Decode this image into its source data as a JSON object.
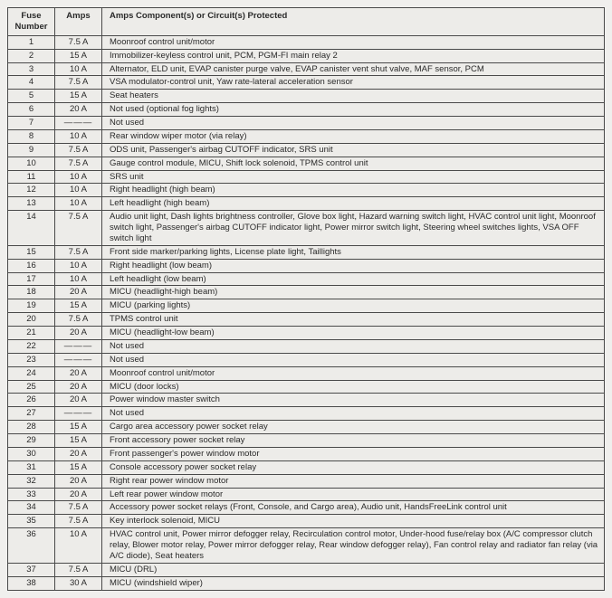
{
  "headers": {
    "fuse": "Fuse\nNumber",
    "amps": "Amps",
    "desc": "Amps Component(s) or Circuit(s) Protected"
  },
  "rows": [
    {
      "n": "1",
      "a": "7.5 A",
      "d": "Moonroof control unit/motor"
    },
    {
      "n": "2",
      "a": "15 A",
      "d": "Immobilizer-keyless control unit, PCM, PGM-FI main relay 2"
    },
    {
      "n": "3",
      "a": "10 A",
      "d": "Alternator, ELD unit, EVAP canister purge valve, EVAP canister vent shut valve, MAF sensor, PCM"
    },
    {
      "n": "4",
      "a": "7.5 A",
      "d": "VSA modulator-control unit, Yaw rate-lateral acceleration sensor"
    },
    {
      "n": "5",
      "a": "15 A",
      "d": "Seat heaters"
    },
    {
      "n": "6",
      "a": "20 A",
      "d": "Not used (optional fog lights)"
    },
    {
      "n": "7",
      "a": "———",
      "d": "Not used"
    },
    {
      "n": "8",
      "a": "10 A",
      "d": "Rear window wiper motor (via relay)"
    },
    {
      "n": "9",
      "a": "7.5 A",
      "d": "ODS unit, Passenger's airbag CUTOFF indicator, SRS unit"
    },
    {
      "n": "10",
      "a": "7.5 A",
      "d": "Gauge control module, MICU, Shift lock solenoid, TPMS control unit"
    },
    {
      "n": "11",
      "a": "10 A",
      "d": "SRS unit"
    },
    {
      "n": "12",
      "a": "10 A",
      "d": "Right headlight (high beam)"
    },
    {
      "n": "13",
      "a": "10 A",
      "d": "Left headlight (high beam)"
    },
    {
      "n": "14",
      "a": "7.5 A",
      "d": "Audio unit light, Dash lights brightness controller, Glove box light, Hazard warning switch light, HVAC control unit light, Moonroof switch light, Passenger's airbag CUTOFF indicator light, Power mirror switch light, Steering wheel switches lights, VSA OFF switch light"
    },
    {
      "n": "15",
      "a": "7.5 A",
      "d": "Front side marker/parking lights, License plate light, Taillights"
    },
    {
      "n": "16",
      "a": "10 A",
      "d": "Right headlight (low beam)"
    },
    {
      "n": "17",
      "a": "10 A",
      "d": "Left headlight (low beam)"
    },
    {
      "n": "18",
      "a": "20 A",
      "d": "MICU (headlight-high beam)"
    },
    {
      "n": "19",
      "a": "15 A",
      "d": "MICU (parking lights)"
    },
    {
      "n": "20",
      "a": "7.5 A",
      "d": "TPMS control unit"
    },
    {
      "n": "21",
      "a": "20 A",
      "d": "MICU (headlight-low beam)"
    },
    {
      "n": "22",
      "a": "———",
      "d": "Not used"
    },
    {
      "n": "23",
      "a": "———",
      "d": "Not used"
    },
    {
      "n": "24",
      "a": "20 A",
      "d": "Moonroof control unit/motor"
    },
    {
      "n": "25",
      "a": "20 A",
      "d": "MICU (door locks)"
    },
    {
      "n": "26",
      "a": "20 A",
      "d": "Power window master switch"
    },
    {
      "n": "27",
      "a": "———",
      "d": "Not used"
    },
    {
      "n": "28",
      "a": "15 A",
      "d": "Cargo area accessory power socket relay"
    },
    {
      "n": "29",
      "a": "15 A",
      "d": "Front accessory power socket relay"
    },
    {
      "n": "30",
      "a": "20 A",
      "d": "Front passenger's power window motor"
    },
    {
      "n": "31",
      "a": "15 A",
      "d": "Console accessory power socket relay"
    },
    {
      "n": "32",
      "a": "20 A",
      "d": "Right rear power window motor"
    },
    {
      "n": "33",
      "a": "20 A",
      "d": "Left rear power window motor"
    },
    {
      "n": "34",
      "a": "7.5 A",
      "d": "Accessory power socket relays (Front, Console, and Cargo area), Audio unit, HandsFreeLink control unit"
    },
    {
      "n": "35",
      "a": "7.5 A",
      "d": "Key interlock solenoid, MICU"
    },
    {
      "n": "36",
      "a": "10 A",
      "d": "HVAC control unit, Power mirror defogger relay, Recirculation control motor, Under-hood fuse/relay box (A/C compressor clutch relay, Blower motor relay, Power mirror defogger relay, Rear window defogger relay), Fan control relay and radiator fan relay (via A/C diode), Seat heaters"
    },
    {
      "n": "37",
      "a": "7.5 A",
      "d": "MICU (DRL)"
    },
    {
      "n": "38",
      "a": "30 A",
      "d": "MICU (windshield wiper)"
    }
  ]
}
